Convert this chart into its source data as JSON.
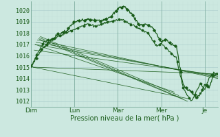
{
  "bg_color": "#cce8e0",
  "grid_color_major": "#aacccc",
  "grid_color_minor": "#c0ddd8",
  "line_color": "#1a5c1a",
  "ylabel_ticks": [
    1012,
    1013,
    1014,
    1015,
    1016,
    1017,
    1018,
    1019,
    1020
  ],
  "xlim": [
    0,
    4.3
  ],
  "ylim": [
    1011.5,
    1020.8
  ],
  "xlabel": "Pression niveau de la mer( hPa )",
  "xtick_labels": [
    "Dim",
    "Lun",
    "Mar",
    "Mer",
    "Je"
  ],
  "xtick_positions": [
    0,
    1,
    2,
    3,
    4
  ],
  "tick_fontsize": 6,
  "label_fontsize": 7
}
